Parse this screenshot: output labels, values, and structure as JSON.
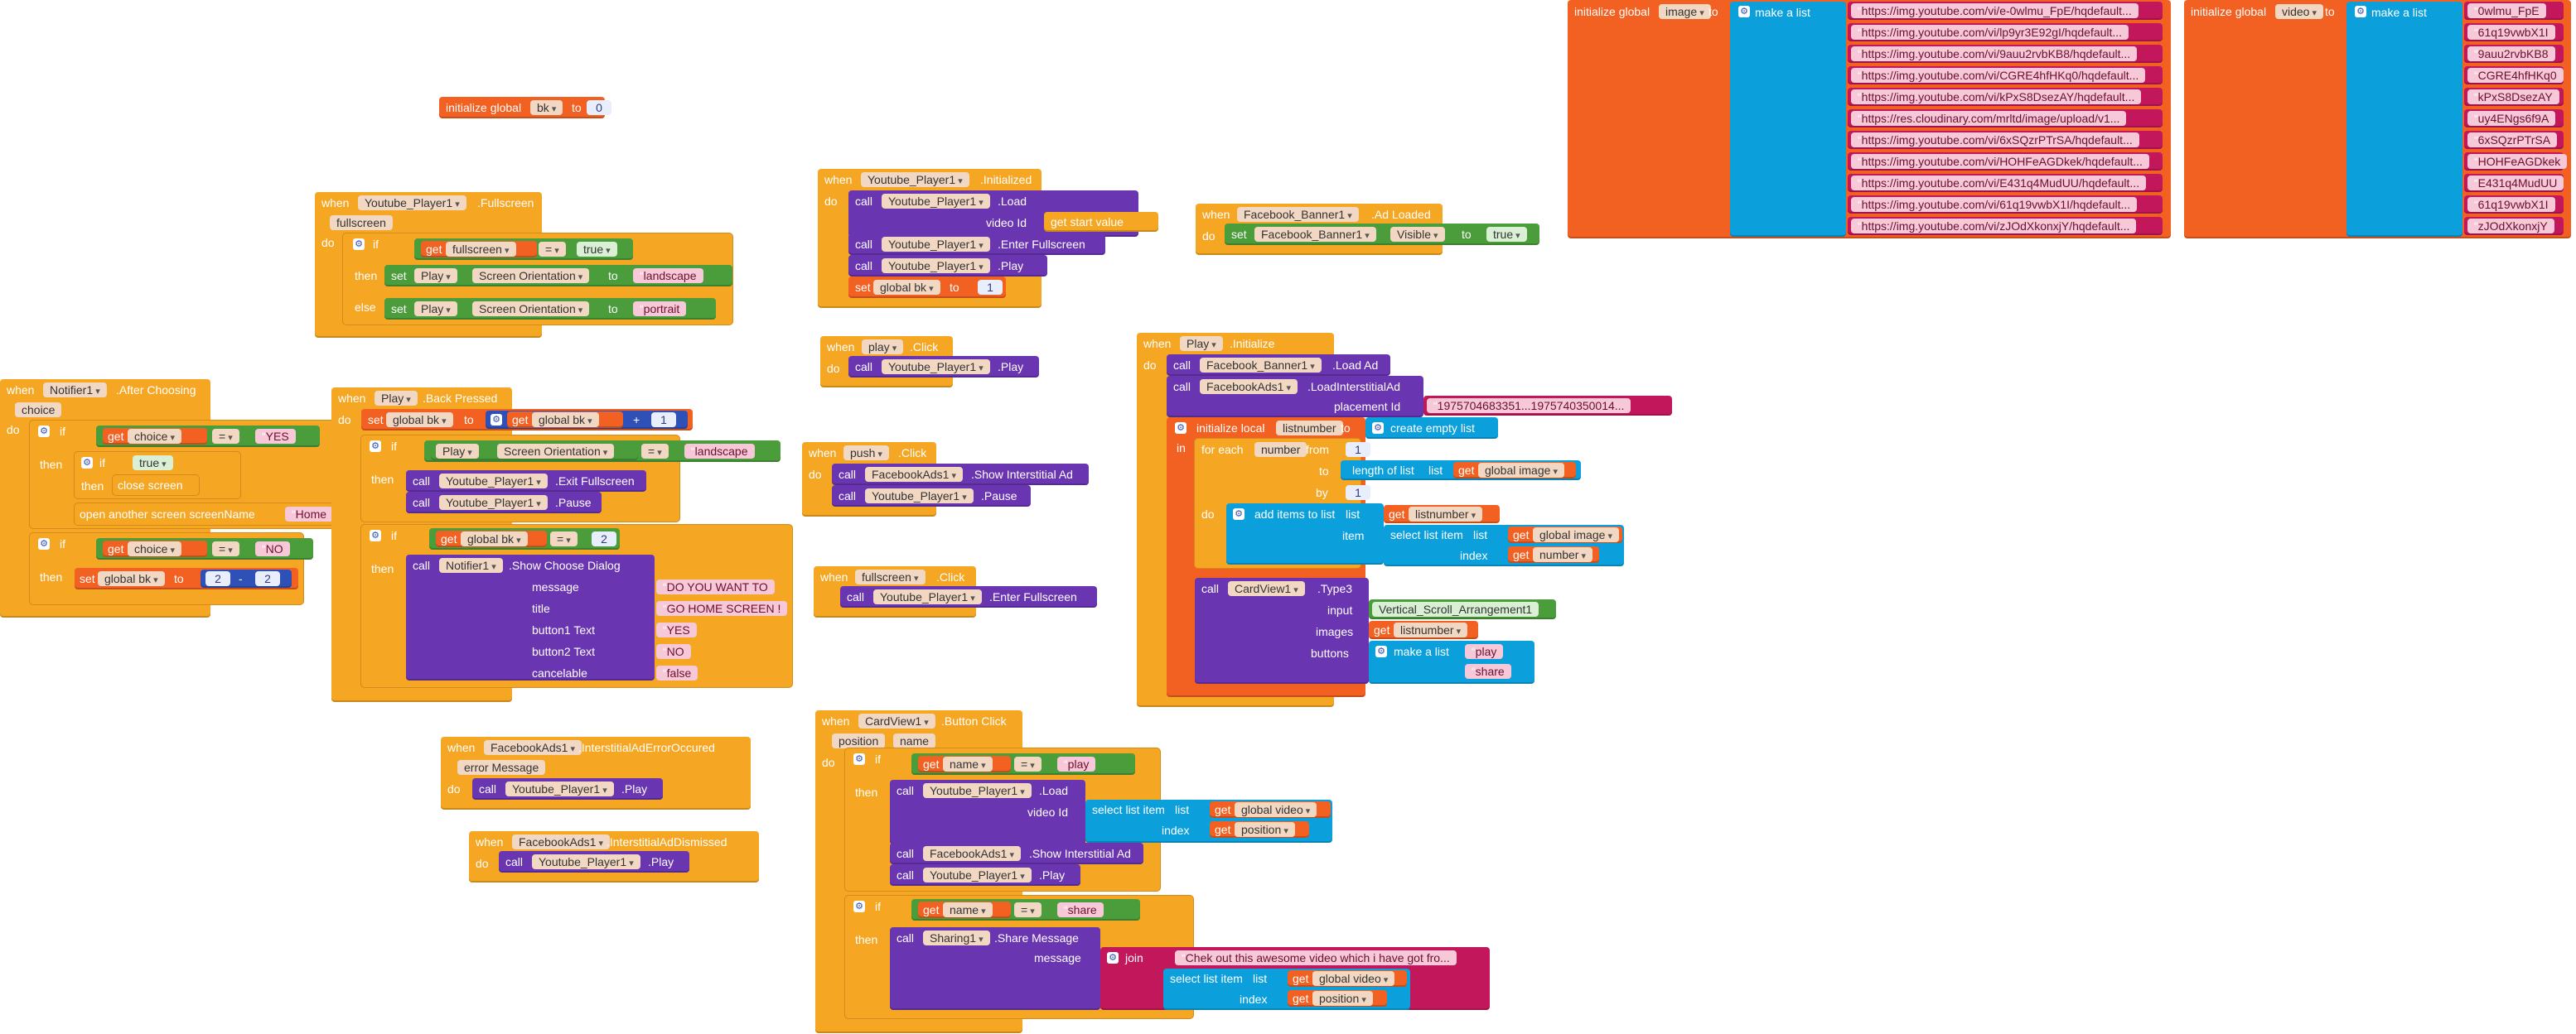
{
  "colors": {
    "event": "#f5a623",
    "set": "#f26022",
    "call": "#6a35b0",
    "logic": "#4a9d3a",
    "text": "#c2185b",
    "list": "#0ba0dc",
    "math": "#2f50b6"
  },
  "icons": {
    "mutator": "gear-icon"
  },
  "words": {
    "when": "when",
    "do": "do",
    "if": "if",
    "then": "then",
    "else": "else",
    "call": "call",
    "set": "set",
    "get": "get",
    "to": "to",
    "in": "in",
    "initialize_global": "initialize global",
    "initialize_local": "initialize local",
    "make_a_list": "make a list",
    "create_empty_list": "create empty list",
    "for_each": "for each",
    "from": "from",
    "by": "by",
    "length_of_list": "length of list",
    "list": "list",
    "add_items_to_list": "add items to list",
    "item": "item",
    "select_list_item": "select list item",
    "index": "index",
    "join": "join",
    "open_another_screen": "open another screen  screenName",
    "close_screen": "close screen",
    "eq": "=",
    "plus": "+",
    "minus": "-"
  },
  "globals": {
    "bk": {
      "name": "bk",
      "value": "0"
    },
    "image": {
      "name": "image",
      "items": [
        "https://img.youtube.com/vi/e-0wlmu_FpE/hqdefault...",
        "https://img.youtube.com/vi/lp9yr3E92gI/hqdefault...",
        "https://img.youtube.com/vi/9auu2rvbKB8/hqdefault...",
        "https://img.youtube.com/vi/CGRE4hfHKq0/hqdefault...",
        "https://img.youtube.com/vi/kPxS8DsezAY/hqdefault...",
        "https://res.cloudinary.com/mrltd/image/upload/v1...",
        "https://img.youtube.com/vi/6xSQzrPTrSA/hqdefault...",
        "https://img.youtube.com/vi/HOHFeAGDkek/hqdefault...",
        "https://img.youtube.com/vi/E431q4MudUU/hqdefault...",
        "https://img.youtube.com/vi/61q19vwbX1I/hqdefault...",
        "https://img.youtube.com/vi/zJOdXkonxjY/hqdefault..."
      ]
    },
    "video": {
      "name": "video",
      "items": [
        "0wlmu_FpE",
        "61q19vwbX1I",
        "9auu2rvbKB8",
        "CGRE4hfHKq0",
        "kPxS8DsezAY",
        "uy4ENgs6f9A",
        "6xSQzrPTrSA",
        "HOHFeAGDkek",
        "E431q4MudUU",
        "61q19vwbX1I",
        "zJOdXkonxjY"
      ]
    }
  },
  "yt_fullscreen": {
    "component": "Youtube_Player1",
    "event": ".Fullscreen",
    "param": "fullscreen",
    "get_var": "fullscreen",
    "true_val": "true",
    "set_comp": "Play",
    "set_prop": "Screen Orientation",
    "landscape": "landscape",
    "portrait": "portrait"
  },
  "yt_initialized": {
    "component": "Youtube_Player1",
    "event": ".Initialized",
    "load": ".Load",
    "video_id": "video Id",
    "start_value": "get start value",
    "enter_fullscreen": ".Enter Fullscreen",
    "play": ".Play",
    "set_var": "global bk",
    "set_val": "1"
  },
  "fb_banner": {
    "component": "Facebook_Banner1",
    "event": ".Ad Loaded",
    "prop": "Visible",
    "value": "true"
  },
  "notifier_after": {
    "component": "Notifier1",
    "event": ".After Choosing",
    "param": "choice",
    "choice_var": "choice",
    "yes": "YES",
    "true_val": "true",
    "screen": "Home",
    "no": "NO",
    "set_var": "global bk",
    "n2a": "2",
    "n2b": "2"
  },
  "back_pressed": {
    "component": "Play",
    "event": ".Back Pressed",
    "set_var": "global bk",
    "get_var": "global bk",
    "add": "1",
    "orient_comp": "Play",
    "orient_prop": "Screen Orientation",
    "landscape": "landscape",
    "exit_full": ".Exit Fullscreen",
    "pause": ".Pause",
    "yt": "Youtube_Player1",
    "cmp": "2",
    "notifier": "Notifier1",
    "dialog": ".Show Choose Dialog",
    "args": [
      {
        "k": "message",
        "v": "DO YOU WANT TO"
      },
      {
        "k": "title",
        "v": "GO HOME SCREEN !"
      },
      {
        "k": "button1 Text",
        "v": "YES"
      },
      {
        "k": "button2 Text",
        "v": "NO"
      },
      {
        "k": "cancelable",
        "v": "false"
      }
    ]
  },
  "play_click": {
    "component": "play",
    "event": ".Click",
    "yt": "Youtube_Player1",
    "method": ".Play"
  },
  "push_click": {
    "component": "push",
    "event": ".Click",
    "fb": "FacebookAds1",
    "m1": ".Show Interstitial Ad",
    "yt": "Youtube_Player1",
    "m2": ".Pause"
  },
  "full_click": {
    "component": "fullscreen",
    "event": ".Click",
    "yt": "Youtube_Player1",
    "method": ".Enter Fullscreen"
  },
  "play_init": {
    "component": "Play",
    "event": ".Initialize",
    "banner": "Facebook_Banner1",
    "load_ad": ".Load Ad",
    "fbads": "FacebookAds1",
    "load_inter": ".LoadInterstitialAd",
    "placement": "placement Id",
    "placement_val": "1975704683351...1975740350014...",
    "local_var": "listnumber",
    "each_var": "number",
    "from_val": "1",
    "by_val": "1",
    "g_image": "global image",
    "get_list": "listnumber",
    "get_num": "number",
    "cardview": "CardView1",
    "type3": ".Type3",
    "input": "input",
    "arr": "Vertical_Scroll_Arrangement1",
    "images": "images",
    "buttons": "buttons",
    "btn1": "play",
    "btn2": "share"
  },
  "ads_error": {
    "component": "FacebookAds1",
    "event": ".InterstitialAdErrorOccured",
    "param": "error Message",
    "yt": "Youtube_Player1",
    "method": ".Play"
  },
  "ads_dismissed": {
    "component": "FacebookAds1",
    "event": ".InterstitialAdDismissed",
    "yt": "Youtube_Player1",
    "method": ".Play"
  },
  "card_click": {
    "component": "CardView1",
    "event": ".Button Click",
    "p1": "position",
    "p2": "name",
    "name_var": "name",
    "play": "play",
    "yt": "Youtube_Player1",
    "load": ".Load",
    "video_id": "video Id",
    "g_video": "global video",
    "pos": "position",
    "fb": "FacebookAds1",
    "show_inter": ".Show Interstitial Ad",
    "play_m": ".Play",
    "share": "share",
    "sharing": "Sharing1",
    "share_msg": ".Share Message",
    "message": "message",
    "msg_text": "Chek out this awesome video which i have got fro..."
  }
}
